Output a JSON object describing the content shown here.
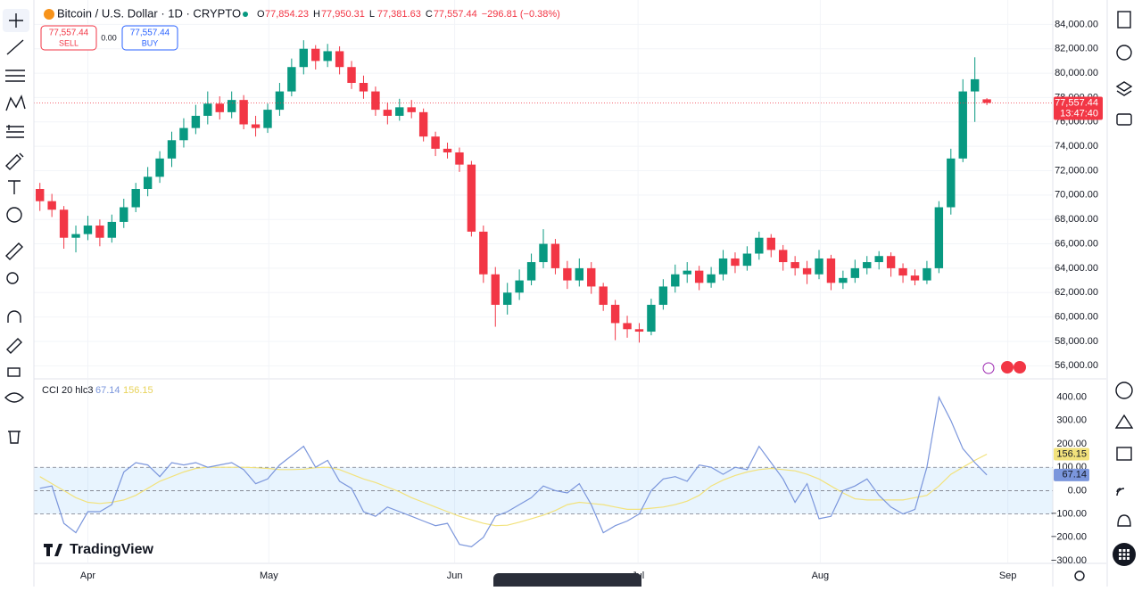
{
  "header": {
    "symbol": "Bitcoin / U.S. Dollar · 1D · CRYPTO",
    "ohlc": [
      {
        "key": "O",
        "value": "77,854.23"
      },
      {
        "key": "H",
        "value": "77,950.31"
      },
      {
        "key": "L",
        "value": "77,381.63"
      },
      {
        "key": "C",
        "value": "77,557.44"
      }
    ],
    "change": "−296.81 (−0.38%)"
  },
  "trade": {
    "sell_price": "77,557.44",
    "sell": "SELL",
    "spread": "0.00",
    "buy_price": "77,557.44",
    "buy": "BUY"
  },
  "logo": "TradingView",
  "chart_data": [
    {
      "type": "candlestick",
      "up_color": "#089981",
      "down_color": "#f23645",
      "categories": [
        null,
        null,
        null,
        null,
        null,
        null,
        null,
        null,
        null,
        null,
        null,
        null,
        null,
        null,
        null,
        null,
        null,
        null,
        null,
        null,
        null,
        null,
        null,
        null,
        null,
        null,
        null,
        null,
        null,
        null,
        null,
        null,
        null,
        null,
        null,
        null,
        null,
        null,
        null,
        null,
        null,
        null,
        null,
        null,
        null,
        null,
        null,
        null,
        null,
        null,
        null,
        null,
        null,
        null,
        null,
        null,
        null,
        null,
        null,
        null,
        null,
        null,
        null,
        null,
        null,
        null,
        null,
        null,
        null,
        null,
        null,
        null,
        null,
        null,
        null,
        null,
        null,
        null,
        null,
        null
      ],
      "open": [
        70500,
        69500,
        68800,
        66500,
        66800,
        67500,
        66500,
        67800,
        69000,
        70500,
        71500,
        73000,
        74500,
        75500,
        76500,
        77500,
        76800,
        77800,
        75800,
        75500,
        77000,
        78500,
        80500,
        82000,
        81000,
        81800,
        80500,
        79200,
        78500,
        77000,
        76500,
        77200,
        76800,
        74800,
        73800,
        73500,
        72500,
        67000,
        63500,
        61000,
        62000,
        63000,
        64500,
        66000,
        64000,
        63000,
        64000,
        62500,
        61000,
        59500,
        59000,
        58800,
        61000,
        62500,
        63500,
        63800,
        62800,
        63500,
        64800,
        64200,
        65200,
        66500,
        65500,
        64500,
        64000,
        63500,
        64800,
        62800,
        63200,
        64000,
        64500,
        65000,
        64000,
        63400,
        63000,
        64000,
        69000,
        73000,
        78500,
        77854.23
      ],
      "high": [
        71000,
        70100,
        69100,
        67500,
        68300,
        68000,
        68400,
        69700,
        71000,
        72300,
        73600,
        75200,
        76300,
        77400,
        78500,
        78100,
        78500,
        78200,
        76500,
        77500,
        79200,
        81200,
        82700,
        82300,
        82400,
        82200,
        81000,
        79800,
        78900,
        77600,
        77900,
        77800,
        77100,
        75200,
        74300,
        73900,
        72800,
        67500,
        64100,
        62800,
        63900,
        65200,
        67200,
        66400,
        64600,
        64800,
        64500,
        62800,
        61400,
        60100,
        59500,
        61500,
        63100,
        64300,
        64500,
        64200,
        64100,
        65500,
        65300,
        65800,
        67000,
        66800,
        65900,
        65000,
        64600,
        65500,
        65100,
        63800,
        64700,
        65000,
        65400,
        65300,
        64400,
        63900,
        64600,
        69500,
        73800,
        79500,
        81300,
        77950.31
      ],
      "low": [
        68700,
        68200,
        65600,
        65300,
        66300,
        65800,
        66100,
        67300,
        68600,
        69900,
        71000,
        72300,
        73900,
        75000,
        75800,
        76200,
        76300,
        75400,
        74800,
        75100,
        76500,
        78100,
        79900,
        80300,
        80500,
        79900,
        78700,
        77900,
        76500,
        75800,
        76100,
        76300,
        74400,
        73200,
        73000,
        71900,
        66600,
        62800,
        59200,
        60200,
        61400,
        62600,
        64000,
        63500,
        62300,
        62500,
        61900,
        60500,
        58100,
        58300,
        57900,
        58500,
        60600,
        62000,
        62800,
        62200,
        62400,
        63000,
        63600,
        63800,
        64700,
        64900,
        63800,
        63400,
        62700,
        63100,
        62200,
        62300,
        62800,
        63500,
        63900,
        63300,
        62800,
        62600,
        62700,
        63600,
        68400,
        72700,
        76000,
        77381.63
      ],
      "close": [
        69500,
        68800,
        66500,
        66800,
        67500,
        66500,
        67800,
        69000,
        70500,
        71500,
        73000,
        74500,
        75500,
        76500,
        77500,
        76800,
        77800,
        75800,
        75500,
        77000,
        78500,
        80500,
        82000,
        81000,
        81800,
        80500,
        79200,
        78500,
        77000,
        76500,
        77200,
        76800,
        74800,
        73800,
        73500,
        72500,
        67000,
        63500,
        61000,
        62000,
        63000,
        64500,
        66000,
        64000,
        63000,
        64000,
        62500,
        61000,
        59500,
        59000,
        58800,
        61000,
        62500,
        63500,
        63800,
        62800,
        63500,
        64800,
        64200,
        65200,
        66500,
        65500,
        64500,
        64000,
        63500,
        64800,
        62800,
        63200,
        64000,
        64500,
        65000,
        64000,
        63400,
        63000,
        64000,
        69000,
        73000,
        78500,
        79500,
        77557.44
      ],
      "price_tag": {
        "value": 77557.44,
        "label": "77,557.44",
        "countdown": "13:47:40"
      },
      "xlim": [
        -0.5,
        84.5
      ],
      "xticks": [
        {
          "value": 4,
          "label": "Apr"
        },
        {
          "value": 19.1,
          "label": "May"
        },
        {
          "value": 34.6,
          "label": "Jun"
        },
        {
          "value": 49.9,
          "label": "Jul"
        },
        {
          "value": 65.1,
          "label": "Aug"
        },
        {
          "value": 80.75,
          "label": "Sep"
        }
      ],
      "ylim": [
        55000,
        86000
      ],
      "yticks": [
        {
          "value": 56000,
          "label": "56,000.00"
        },
        {
          "value": 58000,
          "label": "58,000.00"
        },
        {
          "value": 60000,
          "label": "60,000.00"
        },
        {
          "value": 62000,
          "label": "62,000.00"
        },
        {
          "value": 64000,
          "label": "64,000.00"
        },
        {
          "value": 66000,
          "label": "66,000.00"
        },
        {
          "value": 68000,
          "label": "68,000.00"
        },
        {
          "value": 70000,
          "label": "70,000.00"
        },
        {
          "value": 72000,
          "label": "72,000.00"
        },
        {
          "value": 74000,
          "label": "74,000.00"
        },
        {
          "value": 76000,
          "label": "76,000.00"
        },
        {
          "value": 78000,
          "label": "78,000.00"
        },
        {
          "value": 80000,
          "label": "80,000.00"
        },
        {
          "value": 82000,
          "label": "82,000.00"
        },
        {
          "value": 84000,
          "label": "84,000.00"
        }
      ],
      "grid": true
    },
    {
      "type": "line",
      "title": "CCI 20 hlc3",
      "levels": [
        100,
        0,
        -100
      ],
      "series": [
        {
          "name": "CCI",
          "color": "#7b96dc",
          "values": [
            10,
            20,
            -140,
            -180,
            -90,
            -90,
            -60,
            80,
            120,
            110,
            60,
            120,
            110,
            120,
            100,
            110,
            120,
            90,
            30,
            50,
            110,
            150,
            190,
            100,
            130,
            40,
            10,
            -90,
            -110,
            -70,
            -90,
            -110,
            -130,
            -150,
            -140,
            -230,
            -240,
            -200,
            -110,
            -90,
            -60,
            -30,
            20,
            0,
            -10,
            30,
            -60,
            -180,
            -150,
            -130,
            -100,
            0,
            50,
            60,
            40,
            110,
            100,
            70,
            100,
            90,
            190,
            120,
            50,
            -50,
            30,
            -120,
            -110,
            0,
            20,
            50,
            -20,
            -70,
            -100,
            -80,
            100,
            400,
            300,
            180,
            120,
            67.14
          ]
        },
        {
          "name": "MA",
          "color": "#f2e27c",
          "values": [
            60,
            30,
            0,
            -30,
            -50,
            -55,
            -50,
            -40,
            -20,
            10,
            40,
            60,
            80,
            95,
            100,
            100,
            100,
            100,
            98,
            95,
            90,
            90,
            92,
            98,
            100,
            90,
            70,
            50,
            35,
            15,
            -5,
            -30,
            -50,
            -70,
            -90,
            -110,
            -125,
            -140,
            -150,
            -148,
            -135,
            -120,
            -105,
            -85,
            -60,
            -50,
            -55,
            -60,
            -70,
            -80,
            -80,
            -75,
            -70,
            -60,
            -45,
            -20,
            20,
            45,
            65,
            80,
            90,
            95,
            90,
            85,
            70,
            50,
            20,
            -10,
            -35,
            -40,
            -40,
            -40,
            -40,
            -30,
            -20,
            20,
            70,
            100,
            130,
            156.15
          ]
        }
      ],
      "ylim": [
        -300,
        475
      ],
      "yticks": [
        {
          "value": 400,
          "label": "400.00"
        },
        {
          "value": 300,
          "label": "300.00"
        },
        {
          "value": 200,
          "label": "200.00"
        },
        {
          "value": 100,
          "label": "100.00"
        },
        {
          "value": 0,
          "label": "0.00"
        },
        {
          "value": -100,
          "label": "−100.00"
        },
        {
          "value": -200,
          "label": "−200.00"
        },
        {
          "value": -300,
          "label": "−300.00"
        }
      ]
    }
  ]
}
